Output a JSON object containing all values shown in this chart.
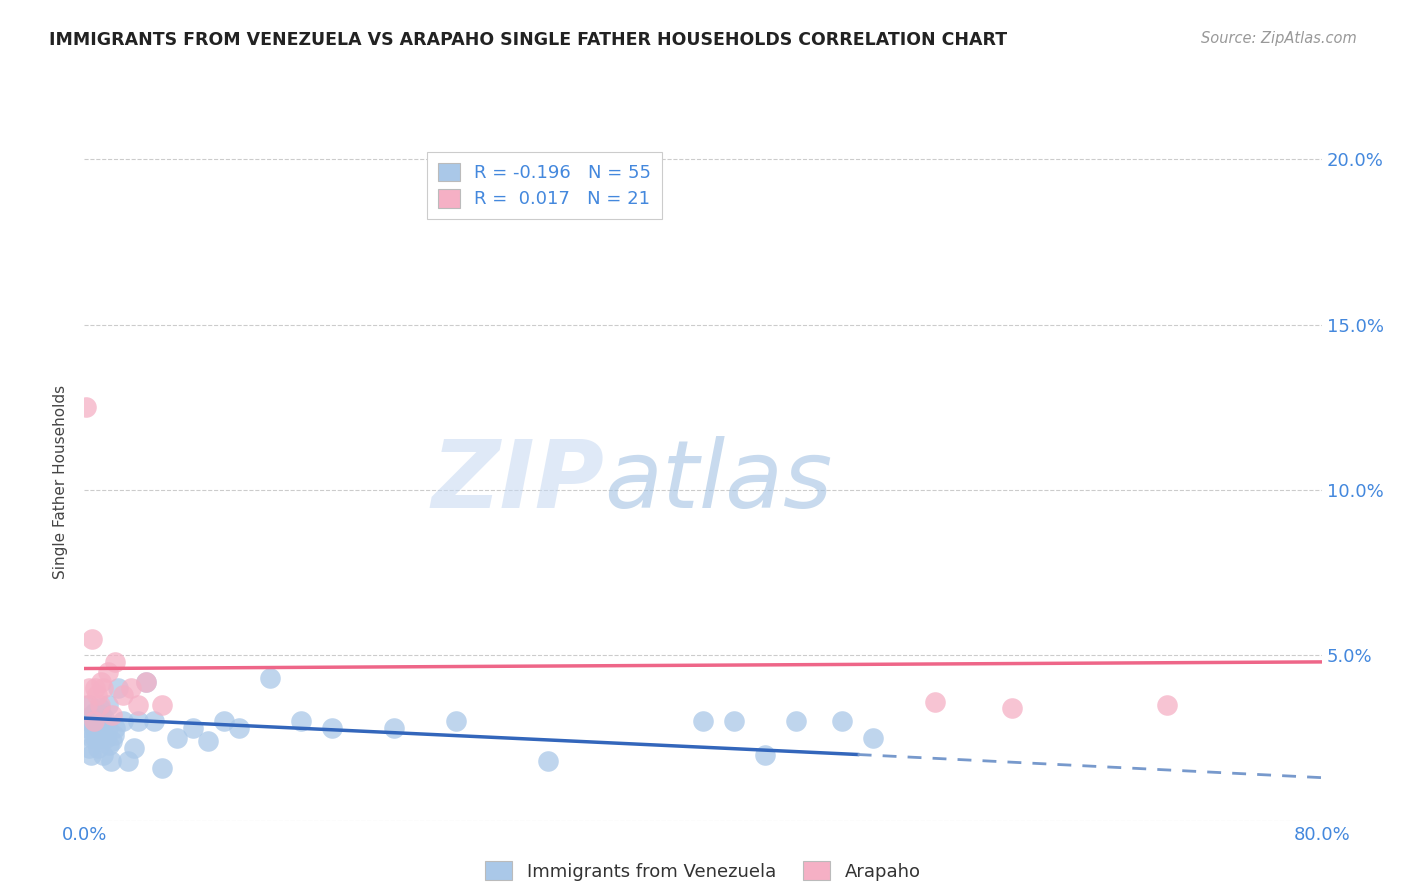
{
  "title": "IMMIGRANTS FROM VENEZUELA VS ARAPAHO SINGLE FATHER HOUSEHOLDS CORRELATION CHART",
  "source": "Source: ZipAtlas.com",
  "ylabel": "Single Father Households",
  "xlim": [
    0.0,
    0.8
  ],
  "ylim": [
    0.0,
    0.205
  ],
  "yticks": [
    0.0,
    0.05,
    0.1,
    0.15,
    0.2
  ],
  "ytick_labels": [
    "",
    "5.0%",
    "10.0%",
    "15.0%",
    "20.0%"
  ],
  "xticks": [
    0.0,
    0.1,
    0.2,
    0.3,
    0.4,
    0.5,
    0.6,
    0.7,
    0.8
  ],
  "xtick_labels": [
    "0.0%",
    "",
    "",
    "",
    "",
    "",
    "",
    "",
    "80.0%"
  ],
  "legend_r_blue": "-0.196",
  "legend_n_blue": "55",
  "legend_r_pink": "0.017",
  "legend_n_pink": "21",
  "blue_color": "#aac8e8",
  "pink_color": "#f5b0c5",
  "trendline_blue_solid_color": "#3366bb",
  "trendline_blue_dash_color": "#7799cc",
  "trendline_pink_color": "#ee6688",
  "axis_tick_color": "#4488dd",
  "grid_color": "#cccccc",
  "watermark_color": "#cdddf0",
  "blue_points_x": [
    0.001,
    0.002,
    0.003,
    0.003,
    0.004,
    0.005,
    0.005,
    0.006,
    0.006,
    0.007,
    0.007,
    0.008,
    0.008,
    0.009,
    0.009,
    0.01,
    0.01,
    0.011,
    0.011,
    0.012,
    0.012,
    0.013,
    0.014,
    0.015,
    0.015,
    0.016,
    0.017,
    0.018,
    0.019,
    0.02,
    0.022,
    0.025,
    0.028,
    0.032,
    0.035,
    0.04,
    0.045,
    0.05,
    0.06,
    0.07,
    0.08,
    0.09,
    0.1,
    0.12,
    0.14,
    0.16,
    0.2,
    0.24,
    0.3,
    0.4,
    0.42,
    0.44,
    0.46,
    0.49,
    0.51
  ],
  "blue_points_y": [
    0.03,
    0.028,
    0.022,
    0.035,
    0.02,
    0.025,
    0.032,
    0.028,
    0.031,
    0.025,
    0.033,
    0.029,
    0.026,
    0.03,
    0.022,
    0.034,
    0.028,
    0.025,
    0.032,
    0.02,
    0.029,
    0.031,
    0.025,
    0.028,
    0.035,
    0.023,
    0.018,
    0.024,
    0.026,
    0.028,
    0.04,
    0.03,
    0.018,
    0.022,
    0.03,
    0.042,
    0.03,
    0.016,
    0.025,
    0.028,
    0.024,
    0.03,
    0.028,
    0.043,
    0.03,
    0.028,
    0.028,
    0.03,
    0.018,
    0.03,
    0.03,
    0.02,
    0.03,
    0.03,
    0.025
  ],
  "pink_points_x": [
    0.001,
    0.002,
    0.003,
    0.005,
    0.006,
    0.007,
    0.008,
    0.01,
    0.011,
    0.012,
    0.015,
    0.018,
    0.02,
    0.025,
    0.03,
    0.035,
    0.04,
    0.05,
    0.55,
    0.6,
    0.7
  ],
  "pink_points_y": [
    0.125,
    0.035,
    0.04,
    0.055,
    0.03,
    0.04,
    0.038,
    0.035,
    0.042,
    0.04,
    0.045,
    0.032,
    0.048,
    0.038,
    0.04,
    0.035,
    0.042,
    0.035,
    0.036,
    0.034,
    0.035
  ],
  "trendline_blue_x0": 0.0,
  "trendline_blue_y0": 0.031,
  "trendline_blue_x1": 0.5,
  "trendline_blue_y1": 0.02,
  "trendline_blue_dash_x0": 0.5,
  "trendline_blue_dash_y0": 0.02,
  "trendline_blue_dash_x1": 0.8,
  "trendline_blue_dash_y1": 0.013,
  "trendline_pink_x0": 0.0,
  "trendline_pink_y0": 0.046,
  "trendline_pink_x1": 0.8,
  "trendline_pink_y1": 0.048
}
